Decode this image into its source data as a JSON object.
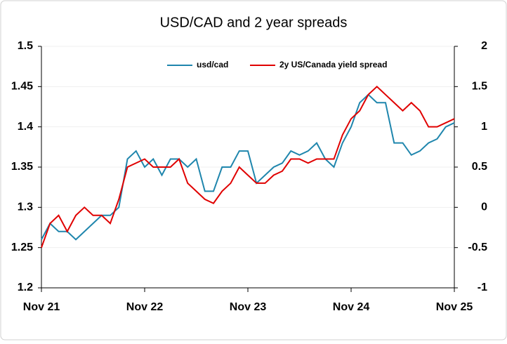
{
  "chart_data": {
    "type": "line",
    "title": "USD/CAD and 2 year spreads",
    "categories": [
      "Nov 21",
      null,
      null,
      null,
      null,
      null,
      null,
      null,
      null,
      null,
      null,
      null,
      "Nov 22",
      null,
      null,
      null,
      null,
      null,
      null,
      null,
      null,
      null,
      null,
      null,
      "Nov 23",
      null,
      null,
      null,
      null,
      null,
      null,
      null,
      null,
      null,
      null,
      null,
      "Nov 24",
      null,
      null,
      null,
      null,
      null,
      null,
      null,
      null,
      null,
      null,
      null,
      "Nov 25"
    ],
    "series": [
      {
        "name": "usd/cad",
        "color": "#1f86ad",
        "values": [
          1.26,
          1.28,
          1.27,
          1.27,
          1.26,
          1.27,
          1.28,
          1.29,
          1.29,
          1.3,
          1.36,
          1.37,
          1.35,
          1.36,
          1.34,
          1.36,
          1.36,
          1.35,
          1.36,
          1.32,
          1.32,
          1.35,
          1.35,
          1.37,
          1.37,
          1.33,
          1.34,
          1.35,
          1.355,
          1.37,
          1.365,
          1.37,
          1.38,
          1.36,
          1.35,
          1.38,
          1.4,
          1.43,
          1.44,
          1.43,
          1.43,
          1.38,
          1.38,
          1.365,
          1.37,
          1.38,
          1.385,
          1.4,
          1.405
        ]
      },
      {
        "name": "2y US/Canada yield spread",
        "color": "#e00000",
        "axis": "y2",
        "values": [
          -0.5,
          -0.2,
          -0.1,
          -0.3,
          -0.1,
          0,
          -0.1,
          -0.1,
          -0.2,
          0.1,
          0.5,
          0.55,
          0.6,
          0.5,
          0.5,
          0.5,
          0.6,
          0.3,
          0.2,
          0.1,
          0.05,
          0.2,
          0.3,
          0.5,
          0.4,
          0.3,
          0.3,
          0.4,
          0.45,
          0.6,
          0.6,
          0.55,
          0.6,
          0.6,
          0.6,
          0.9,
          1.1,
          1.2,
          1.4,
          1.5,
          1.4,
          1.3,
          1.2,
          1.3,
          1.2,
          1.0,
          1.0,
          1.05,
          1.1
        ]
      }
    ],
    "ylim": [
      1.2,
      1.5
    ],
    "yticks": [
      1.2,
      1.25,
      1.3,
      1.35,
      1.4,
      1.45,
      1.5
    ],
    "y2lim": [
      -1,
      2
    ],
    "y2ticks": [
      -1,
      -0.5,
      0,
      0.5,
      1,
      1.5,
      2
    ],
    "grid": true
  }
}
